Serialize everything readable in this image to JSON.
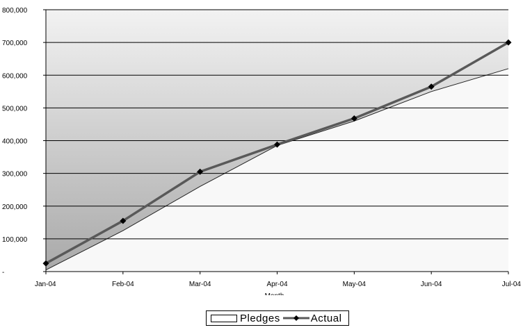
{
  "chart_data": {
    "type": "area",
    "categories": [
      "Jan-04",
      "Feb-04",
      "Mar-04",
      "Apr-04",
      "May-04",
      "Jun-04",
      "Jul-04"
    ],
    "xlabel": "Month",
    "ylabel": "",
    "ylim": [
      0,
      800000
    ],
    "y_ticks": [
      0,
      100000,
      200000,
      300000,
      400000,
      500000,
      600000,
      700000,
      800000
    ],
    "y_tick_labels": [
      "-",
      "100,000",
      "200,000",
      "300,000",
      "400,000",
      "500,000",
      "600,000",
      "700,000",
      "800,000"
    ],
    "grid": true,
    "legend_position": "bottom",
    "series": [
      {
        "name": "Pledges",
        "type": "area",
        "values": [
          5000,
          125000,
          260000,
          385000,
          460000,
          550000,
          620000
        ],
        "color": "#f8f8f8"
      },
      {
        "name": "Actual",
        "type": "line",
        "marker": "diamond",
        "values": [
          25000,
          155000,
          305000,
          388000,
          468000,
          565000,
          700000
        ],
        "color": "#595959"
      }
    ]
  }
}
